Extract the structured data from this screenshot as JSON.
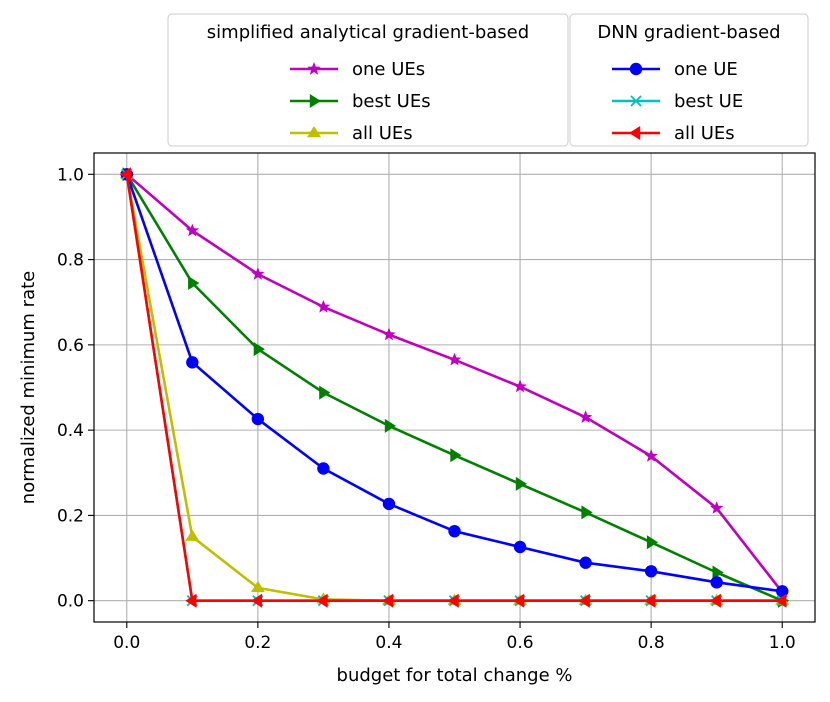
{
  "chart_data": {
    "type": "line",
    "xlabel": "budget for total change %",
    "ylabel": "normalized minimum rate",
    "xlim": [
      -0.05,
      1.05
    ],
    "ylim": [
      -0.05,
      1.05
    ],
    "grid": true,
    "x": [
      0.0,
      0.1,
      0.2,
      0.3,
      0.4,
      0.5,
      0.6,
      0.7,
      0.8,
      0.9,
      1.0
    ],
    "xticks": [
      0.0,
      0.2,
      0.4,
      0.6,
      0.8,
      1.0
    ],
    "yticks": [
      0.0,
      0.2,
      0.4,
      0.6,
      0.8,
      1.0
    ],
    "legend_groups": [
      {
        "title": "simplified analytical gradient-based",
        "placement": "top-left outside"
      },
      {
        "title": "DNN gradient-based",
        "placement": "top-right outside"
      }
    ],
    "series": [
      {
        "group": 0,
        "name": "one UEs",
        "color": "#bf00bf",
        "marker": "star",
        "values": [
          1.0,
          0.868,
          0.766,
          0.689,
          0.624,
          0.565,
          0.502,
          0.43,
          0.339,
          0.217,
          0.02
        ]
      },
      {
        "group": 0,
        "name": "best UEs",
        "color": "#008000",
        "marker": "triangle-right",
        "values": [
          1.0,
          0.745,
          0.59,
          0.488,
          0.41,
          0.341,
          0.274,
          0.207,
          0.137,
          0.066,
          0.0
        ]
      },
      {
        "group": 0,
        "name": "all UEs",
        "color": "#bfbf00",
        "marker": "triangle-up",
        "values": [
          1.0,
          0.15,
          0.03,
          0.003,
          0.0,
          0.0,
          0.0,
          0.0,
          0.0,
          0.0,
          0.0
        ]
      },
      {
        "group": 1,
        "name": "one UE",
        "color": "#0000ff",
        "marker": "circle",
        "values": [
          1.0,
          0.559,
          0.426,
          0.31,
          0.227,
          0.163,
          0.126,
          0.089,
          0.069,
          0.043,
          0.022
        ]
      },
      {
        "group": 1,
        "name": "best UE",
        "color": "#00bfbf",
        "marker": "x",
        "values": [
          1.0,
          0.0,
          0.0,
          0.0,
          0.0,
          0.0,
          0.0,
          0.0,
          0.0,
          0.0,
          0.0
        ]
      },
      {
        "group": 1,
        "name": "all UEs",
        "color": "#ff0000",
        "marker": "triangle-left",
        "values": [
          1.0,
          0.0,
          0.0,
          0.0,
          0.0,
          0.0,
          0.0,
          0.0,
          0.0,
          0.0,
          0.0
        ]
      }
    ]
  }
}
